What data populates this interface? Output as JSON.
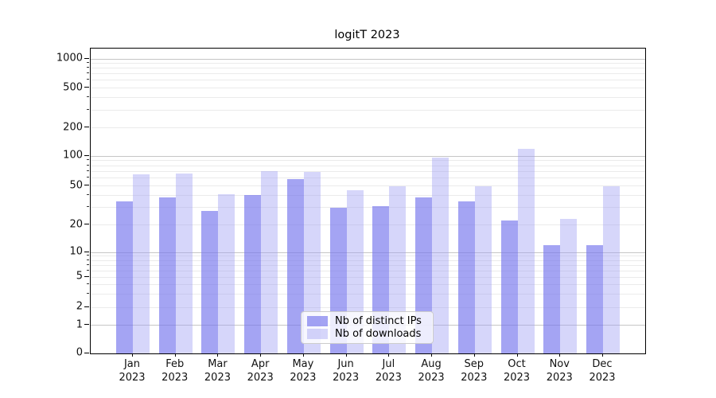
{
  "chart_data": {
    "type": "bar",
    "title": "logitT 2023",
    "categories": [
      "Jan",
      "Feb",
      "Mar",
      "Apr",
      "May",
      "Jun",
      "Jul",
      "Aug",
      "Sep",
      "Oct",
      "Nov",
      "Dec"
    ],
    "x_year": "2023",
    "series": [
      {
        "name": "Nb of distinct IPs",
        "color": "#7575ed",
        "opacity": 0.66,
        "values": [
          35,
          38,
          28,
          40,
          59,
          30,
          31,
          38,
          35,
          22,
          12,
          12
        ]
      },
      {
        "name": "Nb of downloads",
        "color": "#9e9ef2",
        "opacity": 0.42,
        "values": [
          65,
          67,
          41,
          70,
          69,
          45,
          50,
          97,
          50,
          120,
          23,
          50
        ]
      }
    ],
    "y_axis": {
      "scale": "symlog",
      "ticks": [
        0,
        1,
        2,
        5,
        10,
        20,
        50,
        100,
        200,
        500,
        1000
      ],
      "minor_ticks": [
        3,
        4,
        6,
        7,
        8,
        9,
        30,
        40,
        60,
        70,
        80,
        90,
        300,
        400,
        600,
        700,
        800,
        900
      ],
      "major_grid_ticks": [
        1,
        10,
        100,
        1000
      ]
    },
    "legend": {
      "position": "lower center"
    },
    "grid": true,
    "colors": {
      "background": "#ffffff",
      "axis": "#000000",
      "major_grid": "#c6c6c6",
      "minor_grid": "#ebebeb"
    }
  }
}
